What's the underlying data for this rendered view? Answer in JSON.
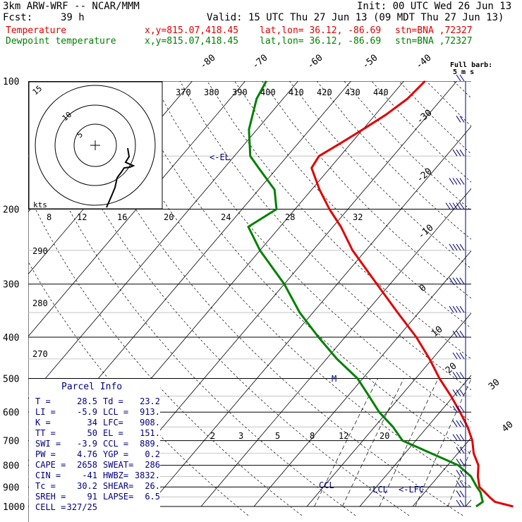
{
  "header": {
    "line1_left": "3km ARW-WRF -- NCAR/MMM",
    "line1_right": "Init: 00 UTC Wed 26 Jun 13",
    "fcst_label": "Fcst:",
    "fcst_value": "39 h",
    "valid": "Valid: 15 UTC Thu 27 Jun 13 (09 MDT Thu 27 Jun 13)",
    "temp_label": "Temperature",
    "dew_label": "Dewpoint temperature",
    "xy": "x,y=815.07,418.45",
    "latlon": "lat,lon= 36.12, -86.69",
    "stn": "stn=BNA ,72327"
  },
  "colors": {
    "temperature": "#e00000",
    "dewpoint": "#008000",
    "annotation": "#000080"
  },
  "barb_legend": {
    "line1": "Full barb:",
    "line2": "5 m s"
  },
  "hodograph": {
    "unit": "kts",
    "rings": [
      "8",
      "12",
      "16",
      "20",
      "24",
      "28",
      "32"
    ],
    "ring_labels": [
      "5",
      "10",
      "15"
    ]
  },
  "parcel_info": {
    "title": "Parcel Info",
    "rows": [
      [
        "T  =",
        "28.5",
        "Td =",
        "23.2"
      ],
      [
        "LI =",
        "-5.9",
        "LCL =",
        "913."
      ],
      [
        "K  =",
        "34",
        "LFC=",
        "908."
      ],
      [
        "TT =",
        "50",
        "EL =",
        "151."
      ],
      [
        "SWI =",
        "-3.9",
        "CCL =",
        "889."
      ],
      [
        "PW =",
        "4.76",
        "YGP =",
        "0.2"
      ],
      [
        "CAPE =",
        "2658",
        "SWEAT=",
        "286"
      ],
      [
        "CIN =",
        "-41",
        "HWBZ=",
        "3832."
      ],
      [
        "Tc =",
        "30.2",
        "SHEAR=",
        "26."
      ],
      [
        "SREH =",
        "91",
        "LAPSE=",
        "6.5"
      ],
      [
        "CELL =",
        "327/25",
        "",
        ""
      ]
    ]
  },
  "annotations": {
    "el": "<-EL",
    "lcl": "-LCL",
    "lfc": "<-LFC",
    "ccl": "CCL",
    "m": "M"
  },
  "chart_data": {
    "type": "skew-t log-p",
    "pressure_ticks": [
      100,
      200,
      300,
      400,
      500,
      600,
      700,
      800,
      900,
      1000
    ],
    "isotherm_labels": [
      -80,
      -70,
      -60,
      -50,
      -40,
      -30,
      -20,
      -10,
      0,
      10,
      20,
      30,
      40
    ],
    "theta_labels": [
      370,
      380,
      390,
      400,
      410,
      420,
      430,
      440
    ],
    "dry_adiabat_labels": [
      290,
      280,
      270
    ],
    "mixing_ratio_labels": [
      "2",
      "3",
      "5",
      "8",
      "12",
      "20"
    ],
    "grid": true,
    "series": [
      {
        "name": "Temperature",
        "points": [
          [
            1000,
            29.0
          ],
          [
            975,
            24.8
          ],
          [
            950,
            23.0
          ],
          [
            925,
            21.3
          ],
          [
            900,
            19.5
          ],
          [
            850,
            17.5
          ],
          [
            800,
            15.8
          ],
          [
            750,
            13.0
          ],
          [
            700,
            10.7
          ],
          [
            650,
            7.6
          ],
          [
            600,
            3.8
          ],
          [
            550,
            -0.5
          ],
          [
            500,
            -5.5
          ],
          [
            450,
            -10.5
          ],
          [
            400,
            -16.5
          ],
          [
            350,
            -24.0
          ],
          [
            300,
            -32.5
          ],
          [
            250,
            -42.5
          ],
          [
            220,
            -48.5
          ],
          [
            200,
            -53.5
          ],
          [
            180,
            -58.5
          ],
          [
            160,
            -63.5
          ],
          [
            150,
            -64.0
          ],
          [
            140,
            -62.0
          ],
          [
            130,
            -60.0
          ],
          [
            120,
            -58.0
          ],
          [
            110,
            -56.5
          ],
          [
            100,
            -56.0
          ]
        ]
      },
      {
        "name": "Dewpoint temperature",
        "points": [
          [
            1000,
            22.0
          ],
          [
            975,
            22.5
          ],
          [
            950,
            21.5
          ],
          [
            925,
            20.5
          ],
          [
            900,
            19.0
          ],
          [
            850,
            16.2
          ],
          [
            800,
            12.0
          ],
          [
            750,
            5.0
          ],
          [
            700,
            -2.5
          ],
          [
            650,
            -6.5
          ],
          [
            600,
            -11.5
          ],
          [
            550,
            -16.0
          ],
          [
            500,
            -21.0
          ],
          [
            450,
            -28.0
          ],
          [
            400,
            -35.0
          ],
          [
            350,
            -42.5
          ],
          [
            300,
            -50.0
          ],
          [
            250,
            -60.0
          ],
          [
            220,
            -66.0
          ],
          [
            200,
            -63.5
          ],
          [
            180,
            -67.0
          ],
          [
            160,
            -73.5
          ],
          [
            150,
            -77.0
          ],
          [
            130,
            -81.5
          ],
          [
            110,
            -85.0
          ],
          [
            100,
            -86.0
          ]
        ]
      }
    ],
    "wind_barbs": [
      {
        "p": 1000,
        "kts": 8
      },
      {
        "p": 950,
        "kts": 10
      },
      {
        "p": 900,
        "kts": 10
      },
      {
        "p": 850,
        "kts": 12
      },
      {
        "p": 800,
        "kts": 12
      },
      {
        "p": 750,
        "kts": 12
      },
      {
        "p": 700,
        "kts": 14
      },
      {
        "p": 650,
        "kts": 14
      },
      {
        "p": 600,
        "kts": 14
      },
      {
        "p": 550,
        "kts": 14
      },
      {
        "p": 500,
        "kts": 14
      },
      {
        "p": 450,
        "kts": 14
      },
      {
        "p": 400,
        "kts": 16
      },
      {
        "p": 350,
        "kts": 18
      },
      {
        "p": 300,
        "kts": 20
      },
      {
        "p": 250,
        "kts": 22
      },
      {
        "p": 200,
        "kts": 24
      },
      {
        "p": 175,
        "kts": 20
      },
      {
        "p": 150,
        "kts": 16
      },
      {
        "p": 125,
        "kts": 12
      },
      {
        "p": 100,
        "kts": 8
      }
    ]
  }
}
